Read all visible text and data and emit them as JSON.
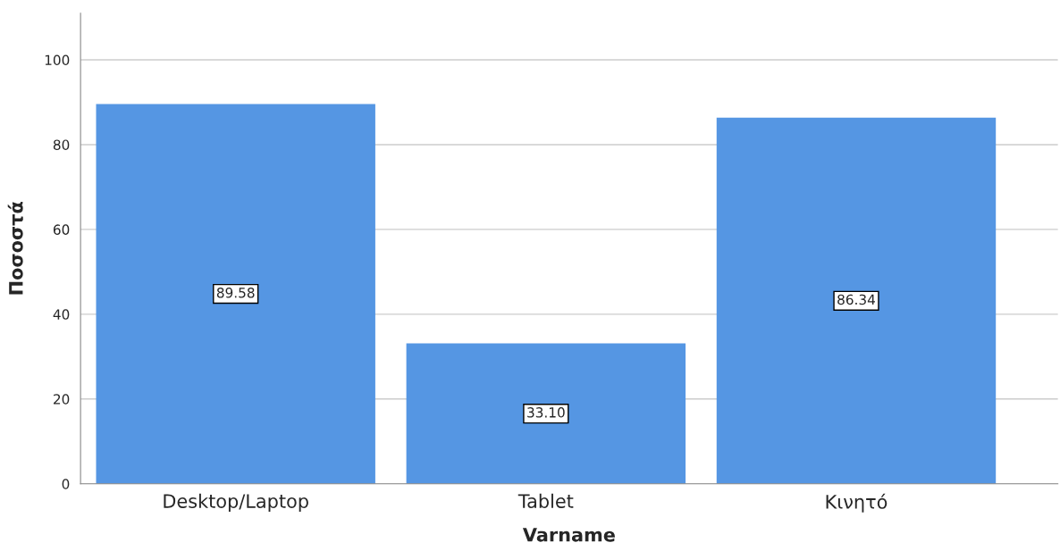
{
  "chart_data": {
    "type": "bar",
    "xlabel": "Varname",
    "ylabel": "Ποσοστά",
    "categories": [
      "Desktop/Laptop",
      "Tablet",
      "Κινητό"
    ],
    "values": [
      89.58,
      33.1,
      86.34
    ],
    "value_labels": [
      "89.58",
      "33.10",
      "86.34"
    ],
    "color": "#5596e3",
    "ylim": [
      0,
      111
    ],
    "yticks": [
      0,
      20,
      40,
      60,
      80,
      100
    ],
    "grid": "y"
  }
}
